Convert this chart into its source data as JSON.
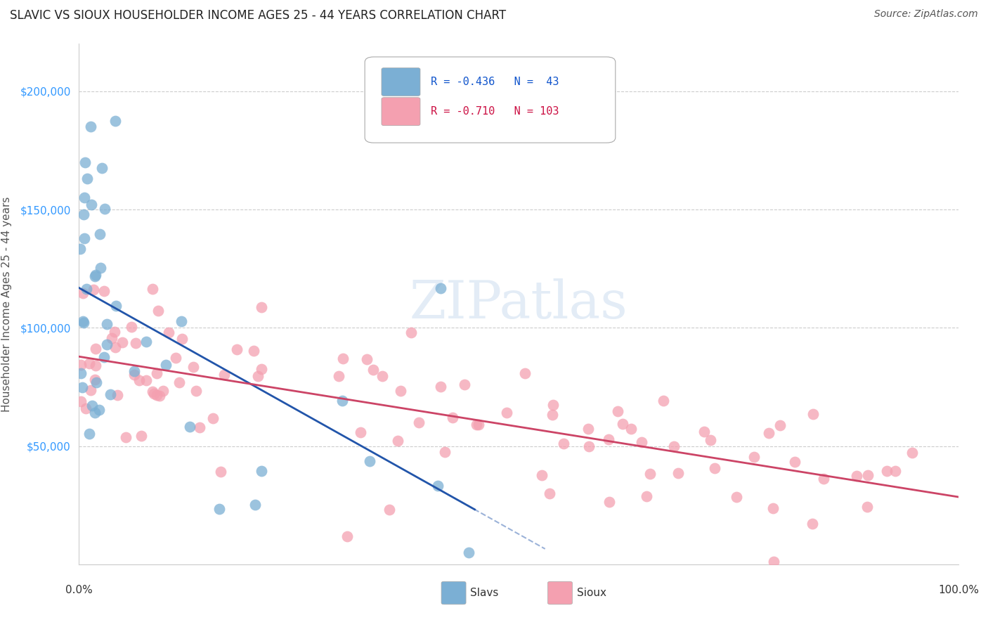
{
  "title": "SLAVIC VS SIOUX HOUSEHOLDER INCOME AGES 25 - 44 YEARS CORRELATION CHART",
  "source": "Source: ZipAtlas.com",
  "ylabel": "Householder Income Ages 25 - 44 years",
  "xlim": [
    0.0,
    1.0
  ],
  "ylim": [
    0,
    220000
  ],
  "grid_color": "#cccccc",
  "background_color": "#ffffff",
  "legend_R_slavs": "-0.436",
  "legend_N_slavs": "43",
  "legend_R_sioux": "-0.710",
  "legend_N_sioux": "103",
  "slavs_color": "#7bafd4",
  "sioux_color": "#f4a0b0",
  "slavs_line_color": "#2255aa",
  "sioux_line_color": "#cc4466"
}
